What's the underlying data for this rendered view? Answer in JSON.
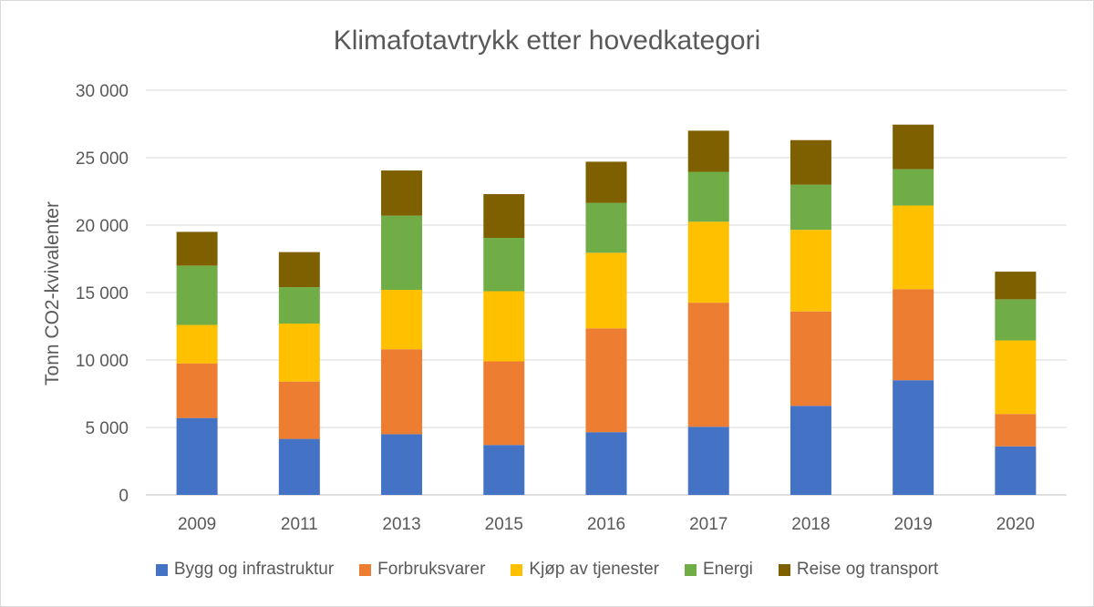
{
  "chart_data": {
    "type": "bar",
    "stacked": true,
    "title": "Klimafotavtrykk etter hovedkategori",
    "xlabel": "",
    "ylabel": "Tonn CO2-kvivalenter",
    "ylim": [
      0,
      30000
    ],
    "yticks": [
      0,
      5000,
      10000,
      15000,
      20000,
      25000,
      30000
    ],
    "ytick_labels": [
      "0",
      "5 000",
      "10 000",
      "15 000",
      "20 000",
      "25 000",
      "30 000"
    ],
    "categories": [
      "2009",
      "2011",
      "2013",
      "2015",
      "2016",
      "2017",
      "2018",
      "2019",
      "2020"
    ],
    "grid": true,
    "legend_position": "bottom",
    "series": [
      {
        "name": "Bygg og infrastruktur",
        "color": "#4472C4",
        "values": [
          5700,
          4150,
          4500,
          3700,
          4650,
          5050,
          6600,
          8500,
          3600
        ]
      },
      {
        "name": "Forbruksvarer",
        "color": "#ED7D31",
        "values": [
          4050,
          4250,
          6300,
          6200,
          7700,
          9200,
          7000,
          6750,
          2400
        ]
      },
      {
        "name": "Kjøp av tjenester",
        "color": "#FFC000",
        "values": [
          2850,
          4300,
          4400,
          5200,
          5600,
          6000,
          6050,
          6200,
          5450
        ]
      },
      {
        "name": "Energi",
        "color": "#70AD47",
        "values": [
          4400,
          2700,
          5500,
          3950,
          3700,
          3700,
          3350,
          2700,
          3050
        ]
      },
      {
        "name": "Reise og transport",
        "color": "#7F6000",
        "values": [
          2500,
          2600,
          3350,
          3250,
          3050,
          3050,
          3300,
          3300,
          2050
        ]
      }
    ]
  }
}
